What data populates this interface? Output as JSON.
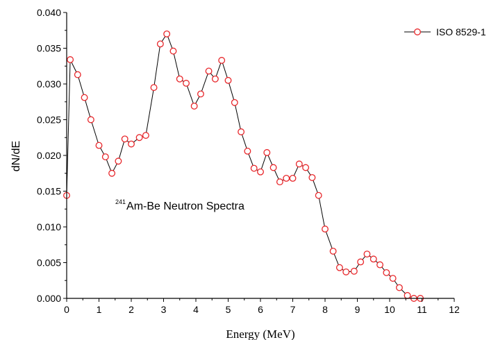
{
  "chart_data": {
    "type": "line",
    "xlabel": "Energy (MeV)",
    "ylabel": "dN/dE",
    "xlim": [
      0,
      12
    ],
    "ylim": [
      0,
      0.04
    ],
    "x_ticks": [
      "0",
      "1",
      "2",
      "3",
      "4",
      "5",
      "6",
      "7",
      "8",
      "9",
      "10",
      "11",
      "12"
    ],
    "y_ticks": [
      "0.000",
      "0.005",
      "0.010",
      "0.015",
      "0.020",
      "0.025",
      "0.030",
      "0.035",
      "0.040"
    ],
    "grid": false,
    "legend_position": "top-right",
    "annotation": {
      "superscript": "241",
      "text": "Am-Be Neutron Spectra"
    },
    "marker_color": "#e8262a",
    "line_color": "#000000",
    "series": [
      {
        "name": "ISO 8529-1",
        "x": [
          0.0,
          0.11,
          0.34,
          0.55,
          0.75,
          1.0,
          1.2,
          1.4,
          1.6,
          1.8,
          2.0,
          2.25,
          2.45,
          2.7,
          2.9,
          3.1,
          3.3,
          3.5,
          3.7,
          3.95,
          4.15,
          4.4,
          4.6,
          4.8,
          5.0,
          5.2,
          5.4,
          5.6,
          5.8,
          6.0,
          6.2,
          6.4,
          6.6,
          6.8,
          7.0,
          7.2,
          7.4,
          7.6,
          7.8,
          8.0,
          8.25,
          8.45,
          8.65,
          8.9,
          9.1,
          9.3,
          9.5,
          9.7,
          9.9,
          10.1,
          10.3,
          10.55,
          10.75,
          10.95
        ],
        "y": [
          0.0144,
          0.0334,
          0.0313,
          0.0281,
          0.025,
          0.0214,
          0.0198,
          0.0175,
          0.0192,
          0.0223,
          0.0216,
          0.0225,
          0.0228,
          0.0295,
          0.0356,
          0.037,
          0.0346,
          0.0307,
          0.0301,
          0.0269,
          0.0286,
          0.0318,
          0.0307,
          0.0333,
          0.0305,
          0.0274,
          0.0233,
          0.0206,
          0.0182,
          0.0177,
          0.0204,
          0.0183,
          0.0163,
          0.0168,
          0.0168,
          0.0188,
          0.0183,
          0.0169,
          0.0144,
          0.0097,
          0.0066,
          0.0043,
          0.0037,
          0.0038,
          0.0051,
          0.0062,
          0.0055,
          0.0047,
          0.0036,
          0.0028,
          0.0015,
          0.0004,
          0.0,
          0.0
        ]
      }
    ]
  }
}
